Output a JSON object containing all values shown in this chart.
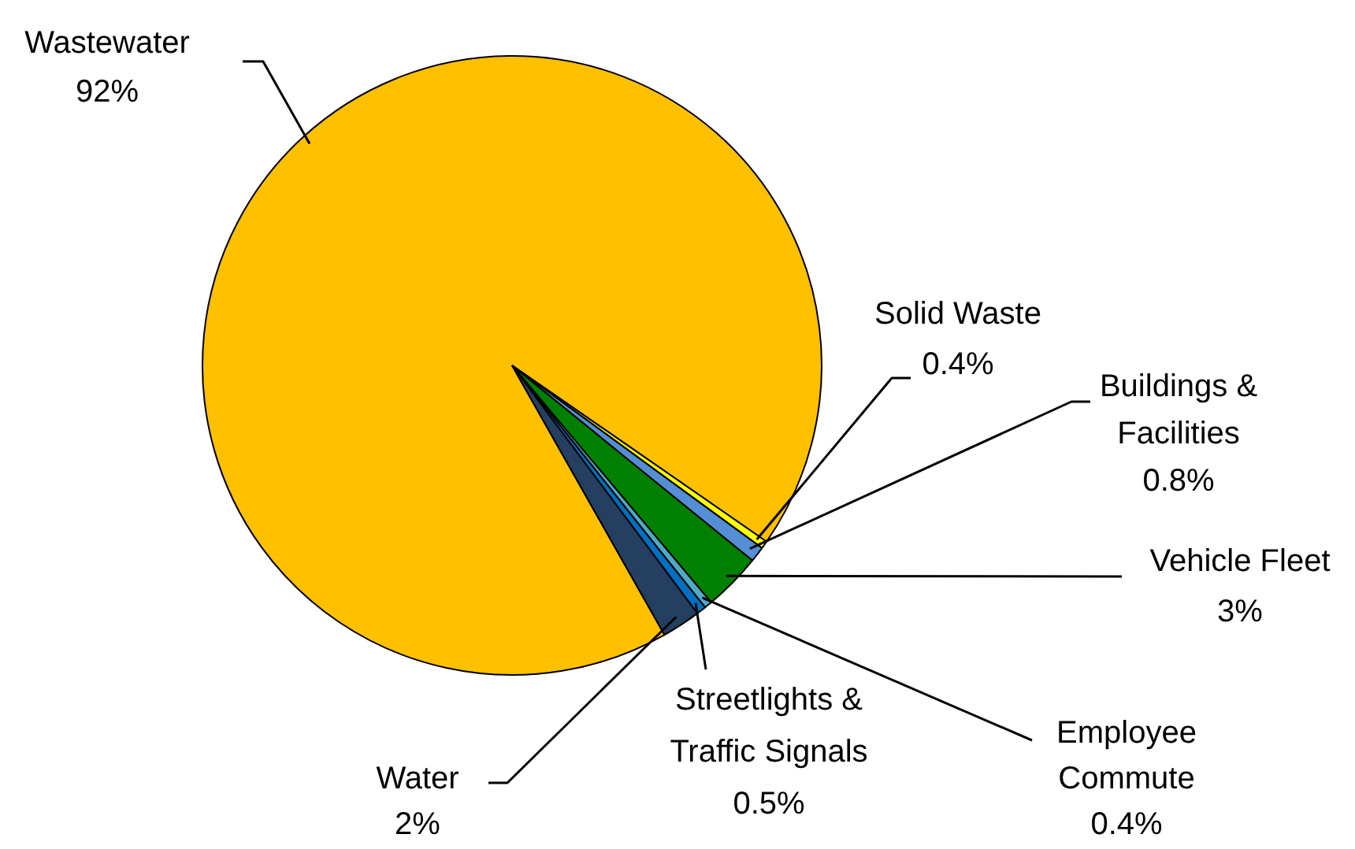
{
  "chart_data": {
    "type": "pie",
    "categories": [
      "Wastewater",
      "Solid Waste",
      "Buildings & Facilities",
      "Vehicle Fleet",
      "Employee Commute",
      "Streetlights & Traffic Signals",
      "Water"
    ],
    "values": [
      92,
      0.4,
      0.8,
      3,
      0.4,
      0.5,
      2
    ],
    "value_labels": [
      "92%",
      "0.4%",
      "0.8%",
      "3%",
      "0.4%",
      "0.5%",
      "2%"
    ],
    "colors": [
      "#ffc000",
      "#ffff00",
      "#558ed5",
      "#008000",
      "#4bacc6",
      "#0070c0",
      "#243f60"
    ]
  }
}
